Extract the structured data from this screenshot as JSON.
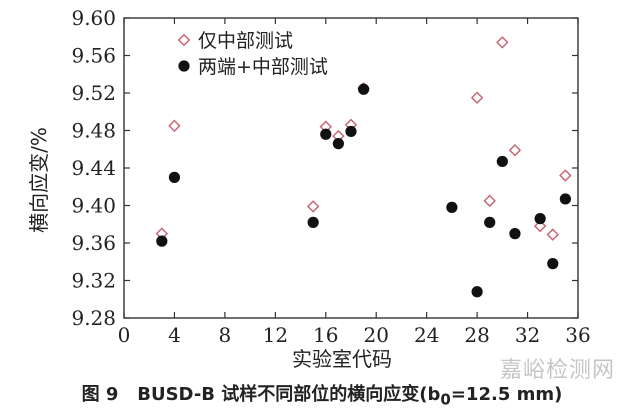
{
  "chart_data": {
    "type": "scatter",
    "xlabel": "实验室代码",
    "ylabel": "横向应变/%",
    "xlim": [
      0,
      36
    ],
    "ylim": [
      9.28,
      9.6
    ],
    "xticks": [
      "0",
      "4",
      "8",
      "12",
      "16",
      "20",
      "24",
      "28",
      "32",
      "36"
    ],
    "yticks": [
      "9.28",
      "9.32",
      "9.36",
      "9.40",
      "9.44",
      "9.48",
      "9.52",
      "9.56",
      "9.60"
    ],
    "grid": false,
    "legend_position": "top-left",
    "series": [
      {
        "name": "仅中部测试",
        "marker": "open-diamond",
        "color": "#c96a78",
        "points": [
          {
            "x": 3,
            "y": 9.37
          },
          {
            "x": 4,
            "y": 9.485
          },
          {
            "x": 15,
            "y": 9.399
          },
          {
            "x": 16,
            "y": 9.484
          },
          {
            "x": 17,
            "y": 9.474
          },
          {
            "x": 18,
            "y": 9.486
          },
          {
            "x": 19,
            "y": 9.525
          },
          {
            "x": 28,
            "y": 9.515
          },
          {
            "x": 29,
            "y": 9.405
          },
          {
            "x": 30,
            "y": 9.574
          },
          {
            "x": 31,
            "y": 9.459
          },
          {
            "x": 33,
            "y": 9.378
          },
          {
            "x": 34,
            "y": 9.369
          },
          {
            "x": 35,
            "y": 9.432
          }
        ]
      },
      {
        "name": "两端+中部测试",
        "marker": "filled-circle",
        "color": "#111111",
        "points": [
          {
            "x": 3,
            "y": 9.362
          },
          {
            "x": 4,
            "y": 9.43
          },
          {
            "x": 15,
            "y": 9.382
          },
          {
            "x": 16,
            "y": 9.476
          },
          {
            "x": 17,
            "y": 9.466
          },
          {
            "x": 18,
            "y": 9.479
          },
          {
            "x": 19,
            "y": 9.524
          },
          {
            "x": 26,
            "y": 9.398
          },
          {
            "x": 28,
            "y": 9.308
          },
          {
            "x": 29,
            "y": 9.382
          },
          {
            "x": 30,
            "y": 9.447
          },
          {
            "x": 31,
            "y": 9.37
          },
          {
            "x": 33,
            "y": 9.386
          },
          {
            "x": 34,
            "y": 9.338
          },
          {
            "x": 35,
            "y": 9.407
          }
        ]
      }
    ]
  },
  "caption": {
    "figure_no": "图 9",
    "text": "BUSD-B 试样不同部位的横向应变(b",
    "subscript": "0",
    "suffix": "=12.5 mm)"
  },
  "watermark": "嘉峪检测网"
}
